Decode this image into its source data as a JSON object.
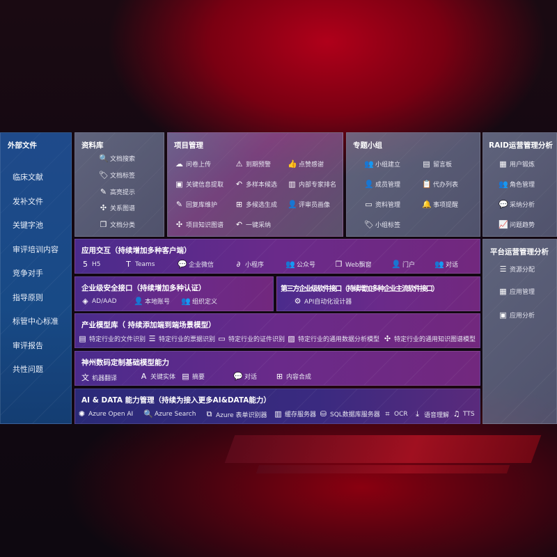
{
  "sidebar": {
    "title": "外部文件",
    "items": [
      "临床文献",
      "发补文件",
      "关键字池",
      "审评培训内容",
      "竞争对手",
      "指导原则",
      "标管中心标准",
      "审评报告",
      "共性问题"
    ]
  },
  "library": {
    "title": "资料库",
    "items": [
      {
        "icon": "doc-search-icon",
        "g": "🔍",
        "label": "文档搜索"
      },
      {
        "icon": "tag-icon",
        "g": "🏷",
        "label": "文档标签"
      },
      {
        "icon": "pen-icon",
        "g": "✎",
        "label": "高亮提示"
      },
      {
        "icon": "graph-icon",
        "g": "✣",
        "label": "关系图谱"
      },
      {
        "icon": "doc-list-icon",
        "g": "❐",
        "label": "文档分类"
      }
    ]
  },
  "project": {
    "title": "项目管理",
    "items": [
      {
        "icon": "cloud-upload-icon",
        "g": "☁",
        "label": "问卷上传"
      },
      {
        "icon": "alarm-icon",
        "g": "⚠",
        "label": "到期预警"
      },
      {
        "icon": "thumb-up-icon",
        "g": "👍",
        "label": "点赞感谢"
      },
      {
        "icon": "extract-icon",
        "g": "▣",
        "label": "关键信息提取"
      },
      {
        "icon": "reply-icon",
        "g": "↶",
        "label": "多样本候选"
      },
      {
        "icon": "rank-icon",
        "g": "▥",
        "label": "内部专家排名"
      },
      {
        "icon": "edit-icon",
        "g": "✎",
        "label": "回复库维护"
      },
      {
        "icon": "puzzle-icon",
        "g": "⊞",
        "label": "多候选生成"
      },
      {
        "icon": "person-icon",
        "g": "👤",
        "label": "评审员画像"
      },
      {
        "icon": "knowledge-graph-icon",
        "g": "✣",
        "label": "项目知识图谱"
      },
      {
        "icon": "reply-icon",
        "g": "↶",
        "label": "一键采纳"
      }
    ]
  },
  "group": {
    "title": "专题小组",
    "items": [
      {
        "icon": "group-icon",
        "g": "👥",
        "label": "小组建立"
      },
      {
        "icon": "bbs-icon",
        "g": "▤",
        "label": "留言板"
      },
      {
        "icon": "add-user-icon",
        "g": "👤",
        "label": "成员管理"
      },
      {
        "icon": "clipboard-icon",
        "g": "📋",
        "label": "代办列表"
      },
      {
        "icon": "folder-icon",
        "g": "▭",
        "label": "资料管理"
      },
      {
        "icon": "bell-icon",
        "g": "🔔",
        "label": "事项提醒"
      },
      {
        "icon": "tag-icon",
        "g": "🏷",
        "label": "小组标签"
      }
    ]
  },
  "raid": {
    "title": "RAID运营管理分析",
    "items": [
      {
        "icon": "id-card-icon",
        "g": "▦",
        "label": "用户锻炼"
      },
      {
        "icon": "users-icon",
        "g": "👥",
        "label": "角色管理"
      },
      {
        "icon": "qa-icon",
        "g": "💬",
        "label": "采纳分析"
      },
      {
        "icon": "trend-icon",
        "g": "📈",
        "label": "问题趋势"
      }
    ]
  },
  "platform": {
    "title": "平台运营管理分析",
    "items": [
      {
        "icon": "checklist-icon",
        "g": "☰",
        "label": "资源分配"
      },
      {
        "icon": "apps-icon",
        "g": "▦",
        "label": "应用管理"
      },
      {
        "icon": "analytics-icon",
        "g": "▣",
        "label": "应用分析"
      }
    ]
  },
  "interaction": {
    "title": "应用交互（持续增加多种客户端）",
    "items": [
      {
        "icon": "html5-icon",
        "g": "5",
        "label": "H5"
      },
      {
        "icon": "teams-icon",
        "g": "T",
        "label": "Teams"
      },
      {
        "icon": "wecom-icon",
        "g": "💬",
        "label": "企业微信"
      },
      {
        "icon": "miniprogram-icon",
        "g": "∂",
        "label": "小程序"
      },
      {
        "icon": "official-account-icon",
        "g": "👥",
        "label": "公众号"
      },
      {
        "icon": "web-window-icon",
        "g": "❐",
        "label": "Web飘窗"
      },
      {
        "icon": "portal-icon",
        "g": "👤",
        "label": "门户"
      },
      {
        "icon": "chat-users-icon",
        "g": "👥",
        "label": "对话"
      }
    ]
  },
  "security": {
    "title": "企业级安全接口（持续增加多种认证）",
    "items": [
      {
        "icon": "ad-icon",
        "g": "◈",
        "label": "AD/AAD"
      },
      {
        "icon": "local-account-icon",
        "g": "👤",
        "label": "本地账号"
      },
      {
        "icon": "org-icon",
        "g": "👥",
        "label": "组织定义"
      }
    ]
  },
  "thirdparty": {
    "title": "第三方企业级软件接口（持续增加多种企业主流软件接口）",
    "items": [
      {
        "icon": "api-gear-icon",
        "g": "⚙",
        "label": "API自动化设计器"
      }
    ]
  },
  "industry": {
    "title": "产业模型库（ 持续添加端到端场景模型）",
    "items": [
      {
        "icon": "file-icon",
        "g": "▤",
        "label": "特定行业的文件识别"
      },
      {
        "icon": "receipt-icon",
        "g": "☰",
        "label": "特定行业的票据识别"
      },
      {
        "icon": "id-card-icon",
        "g": "▭",
        "label": "特定行业的证件识别"
      },
      {
        "icon": "chart-icon",
        "g": "▨",
        "label": "特定行业的通用数据分析模型"
      },
      {
        "icon": "knowledge-graph-icon",
        "g": "✣",
        "label": "特定行业的通用知识图谱模型"
      }
    ]
  },
  "basemodel": {
    "title": "神州数码定制基础模型能力",
    "items": [
      {
        "icon": "translate-icon",
        "g": "文",
        "label": "机器翻译"
      },
      {
        "icon": "entity-icon",
        "g": "A",
        "label": "关键实体"
      },
      {
        "icon": "summary-icon",
        "g": "▤",
        "label": "摘要"
      },
      {
        "icon": "chat-icon",
        "g": "💬",
        "label": "对话"
      },
      {
        "icon": "compose-icon",
        "g": "⊞",
        "label": "内容合成"
      }
    ]
  },
  "aidata": {
    "title": "AI & DATA 能力管理（持续为接入更多AI&DATA能力）",
    "items": [
      {
        "icon": "openai-icon",
        "g": "✺",
        "label": "Azure Open AI"
      },
      {
        "icon": "search-doc-icon",
        "g": "🔍",
        "label": "Azure Search"
      },
      {
        "icon": "form-recognizer-icon",
        "g": "⧉",
        "label": "Azure 表单识别器"
      },
      {
        "icon": "cache-server-icon",
        "g": "▥",
        "label": "缓存服务器"
      },
      {
        "icon": "sql-db-icon",
        "g": "⛁",
        "label": "SQL数据库服务器"
      },
      {
        "icon": "ocr-icon",
        "g": "⌗",
        "label": "OCR"
      },
      {
        "icon": "speech-icon",
        "g": "⤓",
        "label": "语音理解"
      },
      {
        "icon": "tts-icon",
        "g": "♫",
        "label": "TTS"
      }
    ]
  },
  "colors": {
    "sidebar": "#1f4a8a",
    "purple": "#6a2a8a",
    "grey": "#6f7896",
    "accent": "#a01020"
  }
}
